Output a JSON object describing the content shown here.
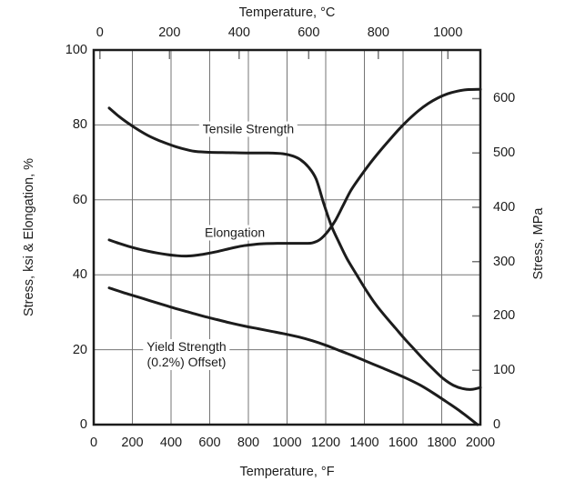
{
  "colors": {
    "background": "#ffffff",
    "curve": "#1c1c1c",
    "frame": "#1c1c1c",
    "grid": "#757575",
    "text": "#1c1c1c"
  },
  "chart_data": {
    "type": "line",
    "title": "",
    "grid": true,
    "x_axis_top": {
      "label": "Temperature, °C",
      "unit": "°C",
      "min": 0,
      "max": 1000,
      "ticks": [
        0,
        200,
        400,
        600,
        800,
        1000
      ]
    },
    "x_axis_bottom": {
      "label": "Temperature, °F",
      "unit": "°F",
      "min": 0,
      "max": 2000,
      "ticks": [
        0,
        200,
        400,
        600,
        800,
        1000,
        1200,
        1400,
        1600,
        1800,
        2000
      ]
    },
    "y_axis_left": {
      "label": "Stress, ksi & Elongation, %",
      "min": 0,
      "max": 100,
      "ticks": [
        0,
        20,
        40,
        60,
        80,
        100
      ]
    },
    "y_axis_right": {
      "label": "Stress, MPa",
      "min": 0,
      "max": 689,
      "ticks": [
        0,
        100,
        200,
        300,
        400,
        500,
        600
      ]
    },
    "series": [
      {
        "name": "Tensile Strength",
        "units_x": "°F",
        "units_y": "ksi",
        "points": [
          [
            80,
            84.5
          ],
          [
            130,
            82.3
          ],
          [
            180,
            80.4
          ],
          [
            230,
            78.7
          ],
          [
            280,
            77.2
          ],
          [
            330,
            76.0
          ],
          [
            380,
            75.0
          ],
          [
            430,
            74.1
          ],
          [
            480,
            73.4
          ],
          [
            530,
            72.9
          ],
          [
            600,
            72.7
          ],
          [
            700,
            72.6
          ],
          [
            800,
            72.5
          ],
          [
            900,
            72.5
          ],
          [
            980,
            72.3
          ],
          [
            1030,
            71.7
          ],
          [
            1070,
            70.7
          ],
          [
            1110,
            68.8
          ],
          [
            1150,
            65.6
          ],
          [
            1190,
            59.0
          ],
          [
            1230,
            53.0
          ],
          [
            1270,
            48.5
          ],
          [
            1310,
            44.3
          ],
          [
            1360,
            40.0
          ],
          [
            1410,
            35.8
          ],
          [
            1460,
            32.0
          ],
          [
            1510,
            28.8
          ],
          [
            1560,
            25.8
          ],
          [
            1610,
            22.8
          ],
          [
            1660,
            20.0
          ],
          [
            1710,
            17.2
          ],
          [
            1760,
            14.6
          ],
          [
            1810,
            12.2
          ],
          [
            1860,
            10.5
          ],
          [
            1910,
            9.6
          ],
          [
            1955,
            9.4
          ],
          [
            2000,
            9.9
          ]
        ]
      },
      {
        "name": "Elongation",
        "units_x": "°F",
        "units_y": "%",
        "points": [
          [
            80,
            49.3
          ],
          [
            130,
            48.4
          ],
          [
            180,
            47.6
          ],
          [
            230,
            46.9
          ],
          [
            280,
            46.3
          ],
          [
            330,
            45.8
          ],
          [
            380,
            45.4
          ],
          [
            430,
            45.1
          ],
          [
            480,
            45.0
          ],
          [
            530,
            45.2
          ],
          [
            580,
            45.6
          ],
          [
            630,
            46.1
          ],
          [
            680,
            46.7
          ],
          [
            730,
            47.3
          ],
          [
            780,
            47.8
          ],
          [
            830,
            48.1
          ],
          [
            880,
            48.3
          ],
          [
            950,
            48.4
          ],
          [
            1020,
            48.4
          ],
          [
            1090,
            48.4
          ],
          [
            1130,
            48.5
          ],
          [
            1170,
            49.4
          ],
          [
            1210,
            51.5
          ],
          [
            1250,
            54.5
          ],
          [
            1290,
            58.5
          ],
          [
            1330,
            62.5
          ],
          [
            1380,
            66.3
          ],
          [
            1430,
            69.8
          ],
          [
            1480,
            73.0
          ],
          [
            1530,
            76.0
          ],
          [
            1580,
            78.9
          ],
          [
            1630,
            81.5
          ],
          [
            1680,
            83.8
          ],
          [
            1730,
            85.7
          ],
          [
            1780,
            87.2
          ],
          [
            1830,
            88.3
          ],
          [
            1880,
            89.0
          ],
          [
            1930,
            89.4
          ],
          [
            2000,
            89.5
          ]
        ]
      },
      {
        "name": "Yield Strength (0.2%) Offset",
        "units_x": "°F",
        "units_y": "ksi",
        "points": [
          [
            80,
            36.5
          ],
          [
            150,
            35.3
          ],
          [
            220,
            34.2
          ],
          [
            290,
            33.1
          ],
          [
            360,
            32.0
          ],
          [
            430,
            30.9
          ],
          [
            500,
            29.9
          ],
          [
            570,
            28.9
          ],
          [
            640,
            28.0
          ],
          [
            710,
            27.1
          ],
          [
            780,
            26.3
          ],
          [
            850,
            25.6
          ],
          [
            920,
            24.9
          ],
          [
            990,
            24.2
          ],
          [
            1060,
            23.4
          ],
          [
            1130,
            22.4
          ],
          [
            1200,
            21.2
          ],
          [
            1270,
            19.8
          ],
          [
            1340,
            18.4
          ],
          [
            1410,
            16.9
          ],
          [
            1480,
            15.4
          ],
          [
            1550,
            13.9
          ],
          [
            1620,
            12.3
          ],
          [
            1690,
            10.5
          ],
          [
            1760,
            8.3
          ],
          [
            1830,
            5.9
          ],
          [
            1900,
            3.4
          ],
          [
            1985,
            0
          ]
        ]
      }
    ],
    "annotations": [
      {
        "text": "Tensile Strength",
        "x_f": 800,
        "y_ksi": 79.0
      },
      {
        "text": "Elongation",
        "x_f": 730,
        "y_ksi": 51.2
      },
      {
        "text": "Yield Strength\n(0.2%) Offset)",
        "x_f": 480,
        "y_ksi": 18.7
      }
    ]
  }
}
